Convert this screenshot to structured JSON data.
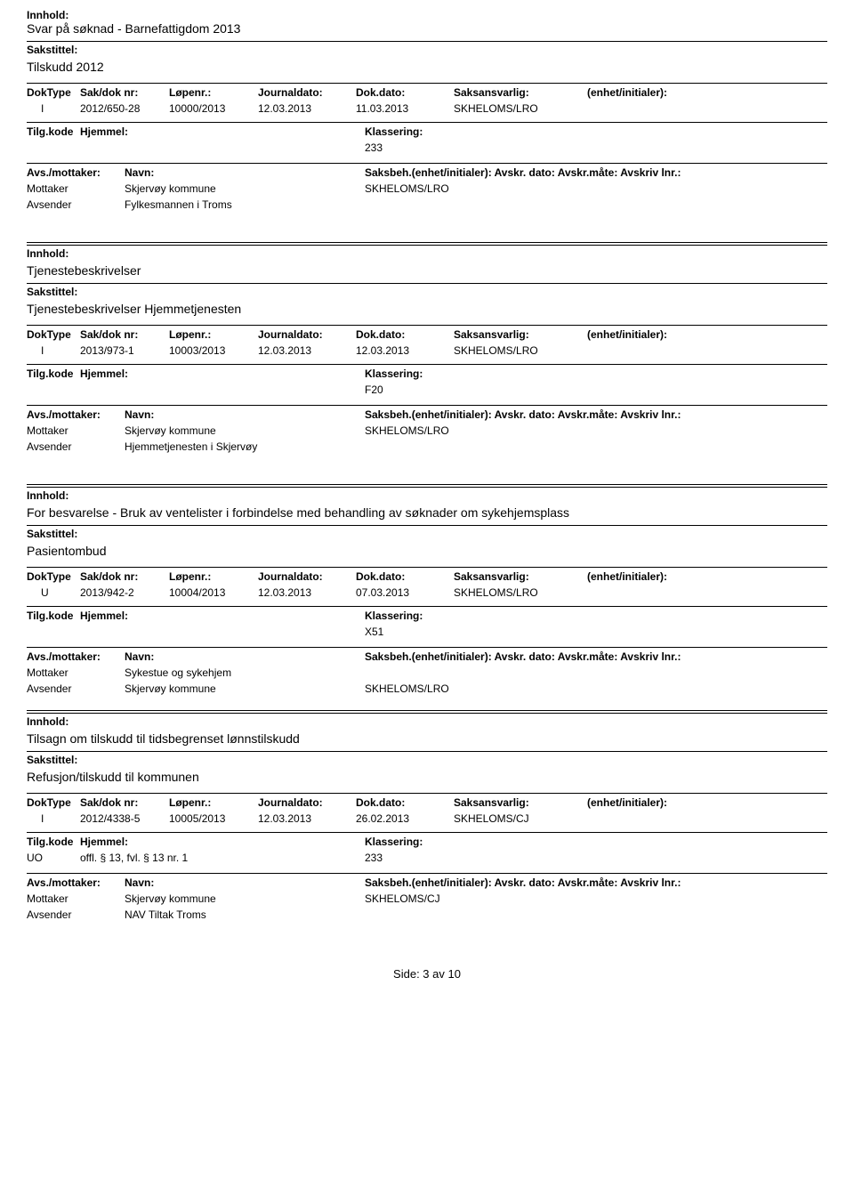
{
  "labels": {
    "innhold": "Innhold:",
    "sakstittel": "Sakstittel:",
    "doktype": "DokType",
    "sakdok": "Sak/dok nr:",
    "lopenr": "Løpenr.:",
    "journaldato": "Journaldato:",
    "dokdato": "Dok.dato:",
    "saksansvarlig": "Saksansvarlig:",
    "enhet": "(enhet/initialer):",
    "tilgkode": "Tilg.kode",
    "hjemmel": "Hjemmel:",
    "klassering": "Klassering:",
    "avsmottaker": "Avs./mottaker:",
    "navn": "Navn:",
    "saksbeh_full": "Saksbeh.(enhet/initialer): Avskr. dato:  Avskr.måte:  Avskriv lnr.:",
    "mottaker": "Mottaker",
    "avsender": "Avsender"
  },
  "records": [
    {
      "innhold": "Svar på søknad - Barnefattigdom 2013",
      "sakstittel": "Tilskudd 2012",
      "doktype": "I",
      "sakdok": "2012/650-28",
      "lopenr": "10000/2013",
      "journaldato": "12.03.2013",
      "dokdato": "11.03.2013",
      "saksansvarlig": "SKHELOMS/LRO",
      "tilgkode": "",
      "hjemmel": "",
      "klassering": "233",
      "mottaker_name": "Skjervøy kommune",
      "mottaker_saksbeh": "SKHELOMS/LRO",
      "avsender_name": "Fylkesmannen i Troms"
    },
    {
      "innhold": "Tjenestebeskrivelser",
      "sakstittel": "Tjenestebeskrivelser Hjemmetjenesten",
      "doktype": "I",
      "sakdok": "2013/973-1",
      "lopenr": "10003/2013",
      "journaldato": "12.03.2013",
      "dokdato": "12.03.2013",
      "saksansvarlig": "SKHELOMS/LRO",
      "tilgkode": "",
      "hjemmel": "",
      "klassering": "F20",
      "mottaker_name": "Skjervøy kommune",
      "mottaker_saksbeh": "SKHELOMS/LRO",
      "avsender_name": "Hjemmetjenesten i Skjervøy"
    },
    {
      "innhold": "For besvarelse - Bruk av ventelister i forbindelse med behandling av søknader om sykehjemsplass",
      "sakstittel": "Pasientombud",
      "doktype": "U",
      "sakdok": "2013/942-2",
      "lopenr": "10004/2013",
      "journaldato": "12.03.2013",
      "dokdato": "07.03.2013",
      "saksansvarlig": "SKHELOMS/LRO",
      "tilgkode": "",
      "hjemmel": "",
      "klassering": "X51",
      "mottaker_name": "Sykestue og sykehjem",
      "mottaker_saksbeh": "",
      "avsender_name": "Skjervøy kommune",
      "avsender_saksbeh": "SKHELOMS/LRO"
    },
    {
      "innhold": "Tilsagn om tilskudd til tidsbegrenset lønnstilskudd",
      "sakstittel": "Refusjon/tilskudd til kommunen",
      "doktype": "I",
      "sakdok": "2012/4338-5",
      "lopenr": "10005/2013",
      "journaldato": "12.03.2013",
      "dokdato": "26.02.2013",
      "saksansvarlig": "SKHELOMS/CJ",
      "tilgkode": "UO",
      "hjemmel": "offl. § 13, fvl. § 13 nr. 1",
      "klassering": "233",
      "mottaker_name": "Skjervøy kommune",
      "mottaker_saksbeh": "SKHELOMS/CJ",
      "avsender_name": "NAV Tiltak Troms"
    }
  ],
  "footer": "Side: 3 av 10"
}
